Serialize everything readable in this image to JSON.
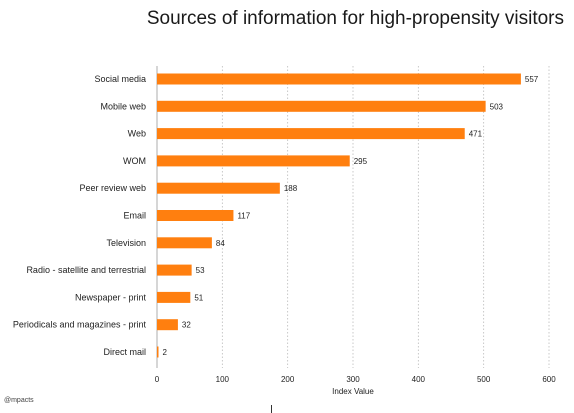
{
  "chart_data": {
    "type": "bar",
    "orientation": "horizontal",
    "title": "Sources of information for high-propensity visitors",
    "categories": [
      "Social media",
      "Mobile web",
      "Web",
      "WOM",
      "Peer review web",
      "Email",
      "Television",
      "Radio - satellite and terrestrial",
      "Newspaper - print",
      "Periodicals and magazines - print",
      "Direct mail"
    ],
    "values": [
      557,
      503,
      471,
      295,
      188,
      117,
      84,
      53,
      51,
      32,
      2
    ],
    "xlabel": "Index Value",
    "ylabel": "",
    "xlim": [
      0,
      600
    ],
    "xticks": [
      0,
      100,
      200,
      300,
      400,
      500,
      600
    ],
    "grid": "vertical dotted",
    "bar_color": "#ff7f0f"
  },
  "footer": {
    "source": "@mpacts"
  }
}
